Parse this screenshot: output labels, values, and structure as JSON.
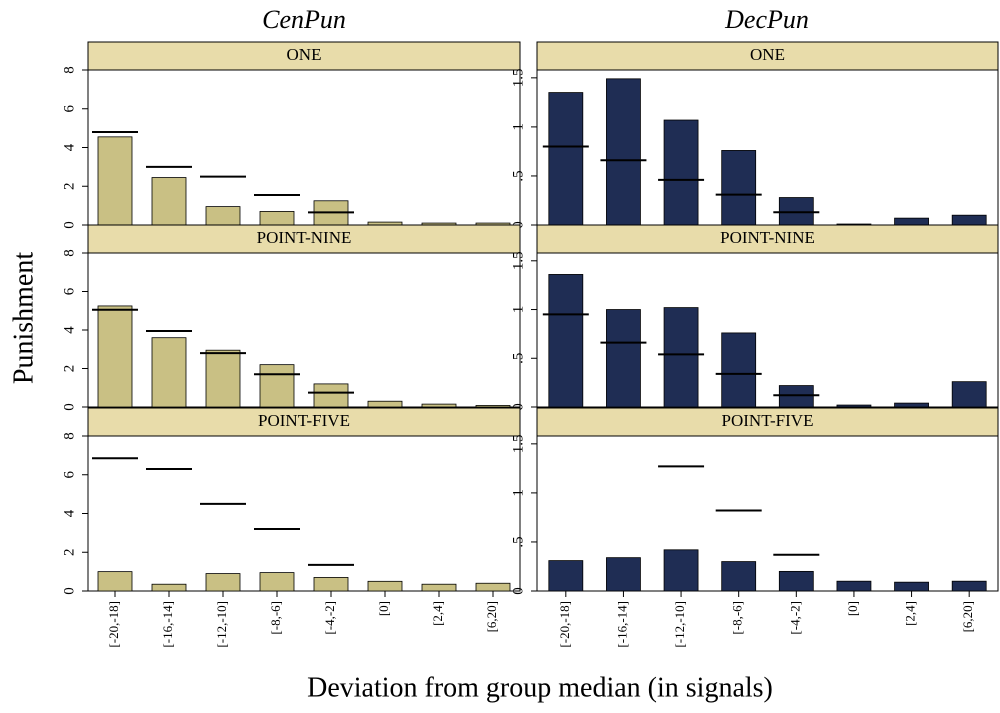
{
  "columns": [
    "CenPun",
    "DecPun"
  ],
  "ylabel": "Punishment",
  "xlabel": "Deviation from group median (in signals)",
  "categories": [
    "[-20,-18]",
    "[-16,-14]",
    "[-12,-10]",
    "[-8,-6]",
    "[-4,-2]",
    "[0]",
    "[2,4]",
    "[6,20]"
  ],
  "chart_data": [
    {
      "type": "bar",
      "title": "ONE",
      "color": "#c9c084",
      "line_color": "#000000",
      "values": [
        4.55,
        2.45,
        0.95,
        0.7,
        1.25,
        0.15,
        0.1,
        0.1
      ],
      "line_values": [
        4.8,
        3.0,
        2.5,
        1.55,
        0.65,
        null,
        null,
        null
      ],
      "ylim": [
        0,
        8
      ],
      "yticks": [
        0,
        2,
        4,
        6,
        8
      ]
    },
    {
      "type": "bar",
      "title": "ONE",
      "color": "#1f2d54",
      "line_color": "#000000",
      "values": [
        1.35,
        1.49,
        1.07,
        0.76,
        0.28,
        0.01,
        0.07,
        0.1
      ],
      "line_values": [
        0.8,
        0.66,
        0.46,
        0.31,
        0.13,
        null,
        null,
        null
      ],
      "ylim": [
        0,
        1.58
      ],
      "yticks": [
        0,
        {
          "value": 0.5,
          "label": ".5"
        },
        1,
        1.5
      ]
    },
    {
      "type": "bar",
      "title": "POINT-NINE",
      "color": "#c9c084",
      "line_color": "#000000",
      "values": [
        5.25,
        3.6,
        2.95,
        2.2,
        1.2,
        0.3,
        0.15,
        0.08
      ],
      "line_values": [
        5.05,
        3.95,
        2.8,
        1.7,
        0.75,
        null,
        null,
        null
      ],
      "ylim": [
        0,
        8
      ],
      "yticks": [
        0,
        2,
        4,
        6,
        8
      ]
    },
    {
      "type": "bar",
      "title": "POINT-NINE",
      "color": "#1f2d54",
      "line_color": "#000000",
      "values": [
        1.36,
        1.0,
        1.02,
        0.76,
        0.22,
        0.02,
        0.04,
        0.26
      ],
      "line_values": [
        0.95,
        0.66,
        0.54,
        0.34,
        0.12,
        null,
        null,
        null
      ],
      "ylim": [
        0,
        1.58
      ],
      "yticks": [
        0,
        {
          "value": 0.5,
          "label": ".5"
        },
        1,
        1.5
      ]
    },
    {
      "type": "bar",
      "title": "POINT-FIVE",
      "color": "#c9c084",
      "line_color": "#000000",
      "values": [
        1.0,
        0.35,
        0.9,
        0.95,
        0.7,
        0.5,
        0.35,
        0.4
      ],
      "line_values": [
        6.85,
        6.3,
        4.5,
        3.2,
        1.35,
        null,
        null,
        null
      ],
      "ylim": [
        0,
        8
      ],
      "yticks": [
        0,
        2,
        4,
        6,
        8
      ]
    },
    {
      "type": "bar",
      "title": "POINT-FIVE",
      "color": "#1f2d54",
      "line_color": "#000000",
      "values": [
        0.31,
        0.34,
        0.42,
        0.3,
        0.2,
        0.1,
        0.09,
        0.1
      ],
      "line_values": [
        null,
        null,
        1.27,
        0.82,
        0.37,
        null,
        null,
        null
      ],
      "ylim": [
        0,
        1.58
      ],
      "yticks": [
        0,
        {
          "value": 0.5,
          "label": ".5"
        },
        1,
        1.5
      ]
    }
  ]
}
